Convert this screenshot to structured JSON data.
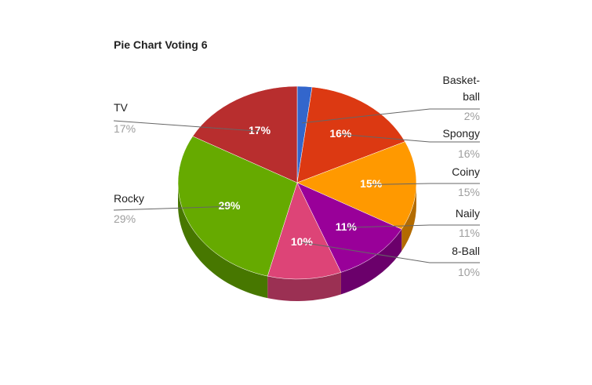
{
  "chart_data": {
    "type": "pie3d",
    "title": "Pie Chart Voting 6",
    "categories": [
      "Basket-ball",
      "Spongy",
      "Coiny",
      "Naily",
      "8-Ball",
      "Rocky",
      "TV"
    ],
    "values": [
      2,
      16,
      15,
      11,
      10,
      29,
      17
    ],
    "value_labels": [
      "2%",
      "16%",
      "15%",
      "11%",
      "10%",
      "29%",
      "17%"
    ],
    "colors": [
      "#3366cc",
      "#dc3912",
      "#ff9900",
      "#990099",
      "#dd4477",
      "#66aa00",
      "#b82e2e"
    ]
  }
}
